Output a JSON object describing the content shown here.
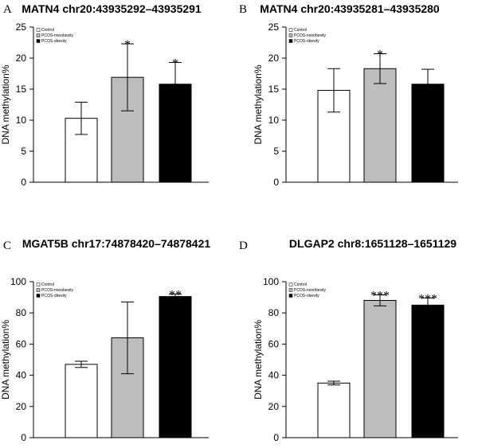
{
  "legend": [
    {
      "label": "Control",
      "color": "#ffffff"
    },
    {
      "label": "PCOS-nonobesity",
      "color": "#bdbdbd"
    },
    {
      "label": "PCOS-obesity",
      "color": "#000000"
    }
  ],
  "chart_data": [
    {
      "type": "bar",
      "letter": "A",
      "title": "MATN4 chr20:43935292–43935291",
      "ylabel": "DNA methylation%",
      "xlabel": "",
      "ylim": [
        0,
        25
      ],
      "yticks": [
        0,
        5,
        10,
        15,
        20,
        25
      ],
      "categories": [
        "Control",
        "PCOS-nonobesity",
        "PCOS-obesity"
      ],
      "values": [
        10.3,
        16.9,
        15.8
      ],
      "errors": [
        2.6,
        5.4,
        3.5
      ],
      "significance": [
        "",
        "*",
        "*"
      ],
      "legend_position": "top-left"
    },
    {
      "type": "bar",
      "letter": "B",
      "title": "MATN4 chr20:43935281–43935280",
      "ylabel": "DNA methylation%",
      "xlabel": "",
      "ylim": [
        0,
        25
      ],
      "yticks": [
        0,
        5,
        10,
        15,
        20,
        25
      ],
      "categories": [
        "Control",
        "PCOS-nonobesity",
        "PCOS-obesity"
      ],
      "values": [
        14.8,
        18.3,
        15.8
      ],
      "errors": [
        3.5,
        2.4,
        2.4
      ],
      "significance": [
        "",
        "*",
        ""
      ],
      "legend_position": "top-left"
    },
    {
      "type": "bar",
      "letter": "C",
      "title": "MGAT5B chr17:74878420–74878421",
      "ylabel": "DNA methylation%",
      "xlabel": "",
      "ylim": [
        0,
        100
      ],
      "yticks": [
        0,
        20,
        40,
        60,
        80,
        100
      ],
      "categories": [
        "Control",
        "PCOS-nonobesity",
        "PCOS-obesity"
      ],
      "values": [
        47,
        64,
        90.5
      ],
      "errors": [
        2,
        23,
        1.5
      ],
      "significance": [
        "",
        "",
        "**"
      ],
      "legend_position": "top-left"
    },
    {
      "type": "bar",
      "letter": "D",
      "title": "DLGAP2 chr8:1651128–1651129",
      "ylabel": "DNA methylation%",
      "xlabel": "",
      "ylim": [
        0,
        100
      ],
      "yticks": [
        0,
        20,
        40,
        60,
        80,
        100
      ],
      "categories": [
        "Control",
        "PCOS-nonobesity",
        "PCOS-obesity"
      ],
      "values": [
        35,
        88,
        85
      ],
      "errors": [
        1.2,
        3.5,
        4.5
      ],
      "significance": [
        "",
        "***",
        "***"
      ],
      "legend_position": "top-left"
    }
  ]
}
